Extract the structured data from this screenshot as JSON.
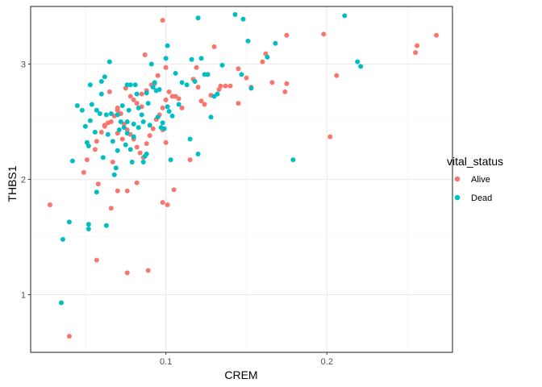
{
  "chart_data": {
    "type": "scatter",
    "xlabel": "CREM",
    "ylabel": "THBS1",
    "xlim": [
      0.016,
      0.278
    ],
    "ylim": [
      0.5,
      3.5
    ],
    "x_ticks": [
      {
        "value": 0.1,
        "label": "0.1"
      },
      {
        "value": 0.2,
        "label": "0.2"
      }
    ],
    "y_ticks": [
      {
        "value": 1,
        "label": "1"
      },
      {
        "value": 2,
        "label": "2"
      },
      {
        "value": 3,
        "label": "3"
      }
    ],
    "grid": true,
    "legend": {
      "title": "vital_status",
      "position": "right"
    },
    "series": [
      {
        "name": "Alive",
        "color": "#F8766D",
        "points": [
          [
            0.028,
            1.78
          ],
          [
            0.04,
            0.64
          ],
          [
            0.057,
            1.3
          ],
          [
            0.076,
            1.19
          ],
          [
            0.089,
            1.21
          ],
          [
            0.098,
            1.8
          ],
          [
            0.101,
            1.78
          ],
          [
            0.105,
            1.91
          ],
          [
            0.082,
            1.97
          ],
          [
            0.076,
            1.9
          ],
          [
            0.066,
            1.75
          ],
          [
            0.07,
            1.9
          ],
          [
            0.058,
            1.96
          ],
          [
            0.049,
            2.06
          ],
          [
            0.051,
            2.17
          ],
          [
            0.056,
            2.26
          ],
          [
            0.057,
            2.33
          ],
          [
            0.06,
            2.41
          ],
          [
            0.062,
            2.47
          ],
          [
            0.064,
            2.49
          ],
          [
            0.066,
            2.5
          ],
          [
            0.068,
            2.55
          ],
          [
            0.07,
            2.6
          ],
          [
            0.072,
            2.57
          ],
          [
            0.074,
            2.48
          ],
          [
            0.076,
            2.43
          ],
          [
            0.078,
            2.39
          ],
          [
            0.08,
            2.35
          ],
          [
            0.082,
            2.28
          ],
          [
            0.084,
            2.23
          ],
          [
            0.086,
            2.19
          ],
          [
            0.088,
            2.31
          ],
          [
            0.09,
            2.38
          ],
          [
            0.092,
            2.44
          ],
          [
            0.094,
            2.52
          ],
          [
            0.096,
            2.56
          ],
          [
            0.098,
            2.62
          ],
          [
            0.1,
            2.69
          ],
          [
            0.102,
            2.76
          ],
          [
            0.104,
            2.72
          ],
          [
            0.106,
            2.72
          ],
          [
            0.108,
            2.7
          ],
          [
            0.11,
            2.62
          ],
          [
            0.098,
            3.38
          ],
          [
            0.1,
            2.97
          ],
          [
            0.087,
            3.08
          ],
          [
            0.075,
            2.79
          ],
          [
            0.078,
            2.72
          ],
          [
            0.08,
            2.69
          ],
          [
            0.082,
            2.66
          ],
          [
            0.085,
            2.74
          ],
          [
            0.088,
            2.77
          ],
          [
            0.091,
            2.82
          ],
          [
            0.095,
            2.9
          ],
          [
            0.093,
            2.83
          ],
          [
            0.1,
            2.32
          ],
          [
            0.098,
            2.43
          ],
          [
            0.119,
            2.97
          ],
          [
            0.122,
            2.68
          ],
          [
            0.124,
            2.65
          ],
          [
            0.128,
            2.73
          ],
          [
            0.13,
            3.15
          ],
          [
            0.133,
            2.78
          ],
          [
            0.134,
            2.81
          ],
          [
            0.137,
            2.81
          ],
          [
            0.14,
            2.81
          ],
          [
            0.145,
            2.66
          ],
          [
            0.145,
            2.96
          ],
          [
            0.15,
            2.88
          ],
          [
            0.153,
            2.8
          ],
          [
            0.16,
            3.02
          ],
          [
            0.162,
            3.09
          ],
          [
            0.166,
            2.84
          ],
          [
            0.174,
            2.76
          ],
          [
            0.175,
            3.25
          ],
          [
            0.175,
            2.83
          ],
          [
            0.198,
            3.26
          ],
          [
            0.202,
            2.37
          ],
          [
            0.206,
            2.9
          ],
          [
            0.255,
            3.1
          ],
          [
            0.256,
            3.16
          ],
          [
            0.268,
            3.25
          ],
          [
            0.065,
            2.76
          ],
          [
            0.067,
            2.15
          ],
          [
            0.07,
            2.62
          ],
          [
            0.073,
            2.35
          ],
          [
            0.115,
            2.17
          ],
          [
            0.117,
            2.87
          ],
          [
            0.12,
            2.8
          ],
          [
            0.07,
            2.4
          ],
          [
            0.085,
            2.63
          ],
          [
            0.062,
            2.46
          ]
        ]
      },
      {
        "name": "Dead",
        "color": "#00BFC4",
        "points": [
          [
            0.035,
            0.93
          ],
          [
            0.036,
            1.48
          ],
          [
            0.04,
            1.63
          ],
          [
            0.052,
            1.57
          ],
          [
            0.052,
            1.61
          ],
          [
            0.057,
            1.89
          ],
          [
            0.063,
            1.6
          ],
          [
            0.042,
            2.16
          ],
          [
            0.045,
            2.64
          ],
          [
            0.048,
            2.6
          ],
          [
            0.051,
            2.32
          ],
          [
            0.052,
            2.29
          ],
          [
            0.05,
            2.46
          ],
          [
            0.053,
            2.51
          ],
          [
            0.053,
            2.82
          ],
          [
            0.054,
            2.65
          ],
          [
            0.056,
            2.41
          ],
          [
            0.057,
            2.6
          ],
          [
            0.059,
            2.57
          ],
          [
            0.06,
            2.74
          ],
          [
            0.06,
            2.85
          ],
          [
            0.061,
            2.19
          ],
          [
            0.063,
            2.56
          ],
          [
            0.064,
            2.39
          ],
          [
            0.065,
            3.02
          ],
          [
            0.066,
            2.57
          ],
          [
            0.067,
            2.33
          ],
          [
            0.068,
            2.04
          ],
          [
            0.069,
            2.1
          ],
          [
            0.07,
            2.25
          ],
          [
            0.07,
            2.56
          ],
          [
            0.071,
            2.43
          ],
          [
            0.072,
            2.5
          ],
          [
            0.073,
            2.64
          ],
          [
            0.074,
            2.45
          ],
          [
            0.075,
            2.3
          ],
          [
            0.076,
            2.82
          ],
          [
            0.076,
            2.4
          ],
          [
            0.077,
            2.6
          ],
          [
            0.078,
            2.82
          ],
          [
            0.078,
            2.26
          ],
          [
            0.079,
            2.15
          ],
          [
            0.08,
            2.37
          ],
          [
            0.08,
            2.48
          ],
          [
            0.081,
            2.82
          ],
          [
            0.082,
            2.74
          ],
          [
            0.083,
            2.45
          ],
          [
            0.083,
            2.62
          ],
          [
            0.085,
            2.56
          ],
          [
            0.086,
            2.15
          ],
          [
            0.086,
            2.5
          ],
          [
            0.087,
            2.2
          ],
          [
            0.088,
            2.22
          ],
          [
            0.088,
            2.75
          ],
          [
            0.089,
            2.66
          ],
          [
            0.09,
            2.47
          ],
          [
            0.091,
            3.0
          ],
          [
            0.092,
            2.8
          ],
          [
            0.093,
            2.84
          ],
          [
            0.094,
            2.77
          ],
          [
            0.095,
            2.54
          ],
          [
            0.096,
            2.78
          ],
          [
            0.097,
            2.45
          ],
          [
            0.098,
            2.49
          ],
          [
            0.099,
            2.44
          ],
          [
            0.1,
            3.05
          ],
          [
            0.101,
            3.16
          ],
          [
            0.101,
            2.63
          ],
          [
            0.102,
            2.59
          ],
          [
            0.103,
            2.17
          ],
          [
            0.104,
            2.55
          ],
          [
            0.106,
            2.92
          ],
          [
            0.108,
            2.65
          ],
          [
            0.11,
            2.84
          ],
          [
            0.113,
            2.82
          ],
          [
            0.115,
            2.35
          ],
          [
            0.116,
            3.04
          ],
          [
            0.118,
            2.85
          ],
          [
            0.12,
            2.22
          ],
          [
            0.12,
            3.4
          ],
          [
            0.122,
            3.05
          ],
          [
            0.124,
            2.91
          ],
          [
            0.126,
            2.91
          ],
          [
            0.128,
            2.54
          ],
          [
            0.13,
            2.72
          ],
          [
            0.132,
            2.74
          ],
          [
            0.135,
            2.99
          ],
          [
            0.143,
            3.43
          ],
          [
            0.147,
            2.91
          ],
          [
            0.148,
            3.39
          ],
          [
            0.151,
            3.2
          ],
          [
            0.153,
            2.79
          ],
          [
            0.163,
            3.06
          ],
          [
            0.168,
            3.18
          ],
          [
            0.179,
            2.17
          ],
          [
            0.211,
            3.42
          ],
          [
            0.219,
            3.02
          ],
          [
            0.221,
            2.98
          ],
          [
            0.062,
            2.89
          ],
          [
            0.076,
            2.5
          ]
        ]
      }
    ]
  }
}
